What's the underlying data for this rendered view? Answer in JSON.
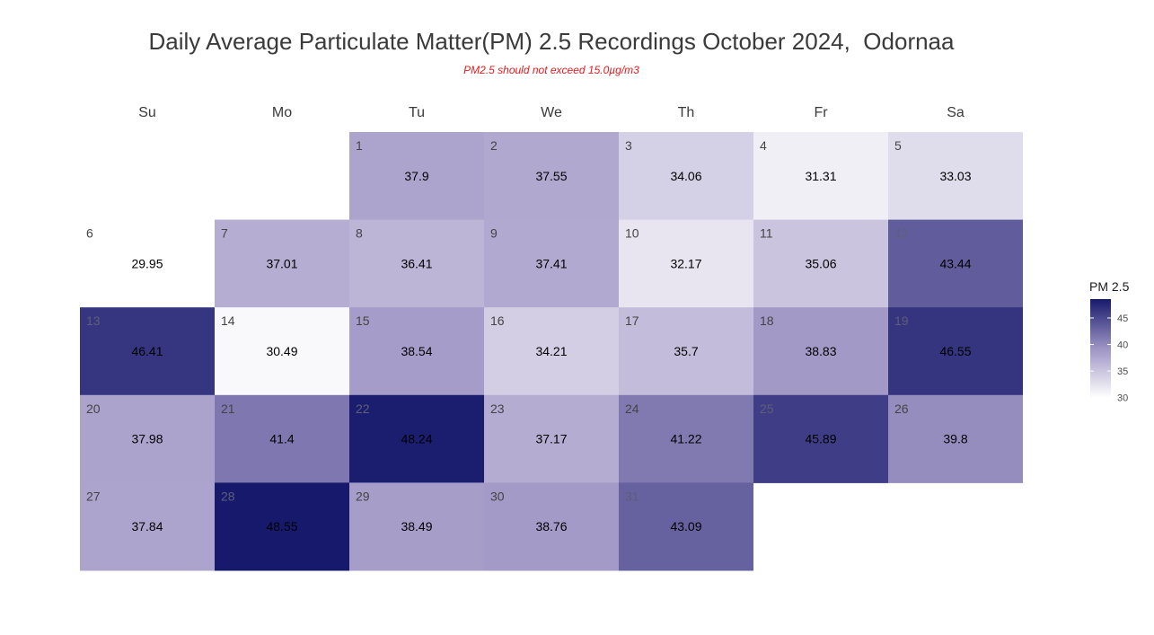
{
  "title": "Daily Average Particulate Matter(PM) 2.5 Recordings October 2024,  Odornaa",
  "subtitle": "PM2.5 should not exceed 15.0µg/m3",
  "colors": {
    "title": "#3a3a3a",
    "subtitle": "#e41a1c",
    "scale_low": "#ffffff",
    "scale_high": "#171a6c",
    "text_light_cell": "#000000",
    "daynum_light_cell": "#444444",
    "daynum_dark_cell": "#5e5e78"
  },
  "chart_data": {
    "type": "heatmap",
    "title": "Daily Average Particulate Matter(PM) 2.5 Recordings October 2024,  Odornaa",
    "subtitle": "PM2.5 should not exceed 15.0µg/m3",
    "weekdays": [
      "Su",
      "Mo",
      "Tu",
      "We",
      "Th",
      "Fr",
      "Sa"
    ],
    "first_weekday_index": 2,
    "days": [
      1,
      2,
      3,
      4,
      5,
      6,
      7,
      8,
      9,
      10,
      11,
      12,
      13,
      14,
      15,
      16,
      17,
      18,
      19,
      20,
      21,
      22,
      23,
      24,
      25,
      26,
      27,
      28,
      29,
      30,
      31
    ],
    "values": [
      "37.9",
      "37.55",
      "34.06",
      "31.31",
      "33.03",
      "29.95",
      "37.01",
      "36.41",
      "37.41",
      "32.17",
      "35.06",
      "43.44",
      "46.41",
      "30.49",
      "38.54",
      "34.21",
      "35.7",
      "38.83",
      "46.55",
      "37.98",
      "41.4",
      "48.24",
      "37.17",
      "41.22",
      "45.89",
      "39.8",
      "37.84",
      "48.55",
      "38.49",
      "38.76",
      "43.09"
    ],
    "legend": {
      "title": "PM 2.5",
      "ticks": [
        "30",
        "35",
        "40",
        "45"
      ],
      "range": [
        29.95,
        48.55
      ]
    }
  }
}
